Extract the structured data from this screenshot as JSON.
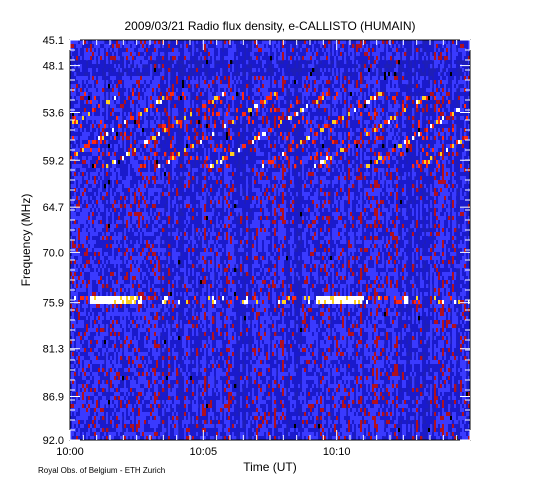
{
  "chart_data": {
    "type": "heatmap",
    "title": "2009/03/21  Radio flux density, e-CALLISTO (HUMAIN)",
    "xlabel": "Time (UT)",
    "ylabel": "Frequency (MHz)",
    "credit": "Royal Obs. of Belgium - ETH Zurich",
    "x_tick_labels": [
      "10:00",
      "10:05",
      "10:10"
    ],
    "x_tick_minutes": [
      0,
      5,
      10
    ],
    "xlim_minutes": [
      0,
      15
    ],
    "y_tick_labels": [
      "45.1",
      "48.1",
      "53.6",
      "59.2",
      "64.7",
      "70.0",
      "75.9",
      "81.3",
      "86.9",
      "92.0"
    ],
    "ylim": [
      45.1,
      92.0
    ],
    "colormap": [
      "#000000",
      "#1a1acc",
      "#3a3aff",
      "#b01020",
      "#ff2a10",
      "#ffd020",
      "#ffffff"
    ],
    "features": {
      "quiet_band_mhz": [
        47.5,
        49.5
      ],
      "drifting_bursts_band_mhz": [
        51.0,
        60.0
      ],
      "interference_line_mhz": 75.7
    }
  }
}
